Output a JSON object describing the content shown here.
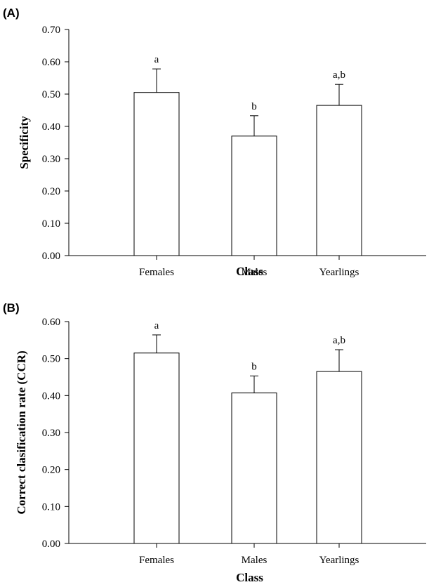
{
  "chart_data": [
    {
      "type": "bar",
      "panel_label": "(A)",
      "categories": [
        "Females",
        "Males",
        "Yearlings"
      ],
      "values": [
        0.505,
        0.37,
        0.465
      ],
      "error": [
        0.073,
        0.063,
        0.065
      ],
      "significance": [
        "a",
        "b",
        "a,b"
      ],
      "xlabel": "Class",
      "ylabel": "Specificity",
      "ylim": [
        0,
        0.7
      ],
      "yticks": [
        "0.00",
        "0.10",
        "0.20",
        "0.30",
        "0.40",
        "0.50",
        "0.60",
        "0.70"
      ],
      "bar_color": "#ffffff",
      "grid": false
    },
    {
      "type": "bar",
      "panel_label": "(B)",
      "categories": [
        "Females",
        "Males",
        "Yearlings"
      ],
      "values": [
        0.515,
        0.407,
        0.465
      ],
      "error": [
        0.049,
        0.046,
        0.059
      ],
      "significance": [
        "a",
        "b",
        "a,b"
      ],
      "xlabel": "Class",
      "ylabel": "Correct clasification rate (CCR)",
      "ylim": [
        0,
        0.6
      ],
      "yticks": [
        "0.00",
        "0.10",
        "0.20",
        "0.30",
        "0.40",
        "0.50",
        "0.60"
      ],
      "bar_color": "#ffffff",
      "grid": false
    }
  ]
}
